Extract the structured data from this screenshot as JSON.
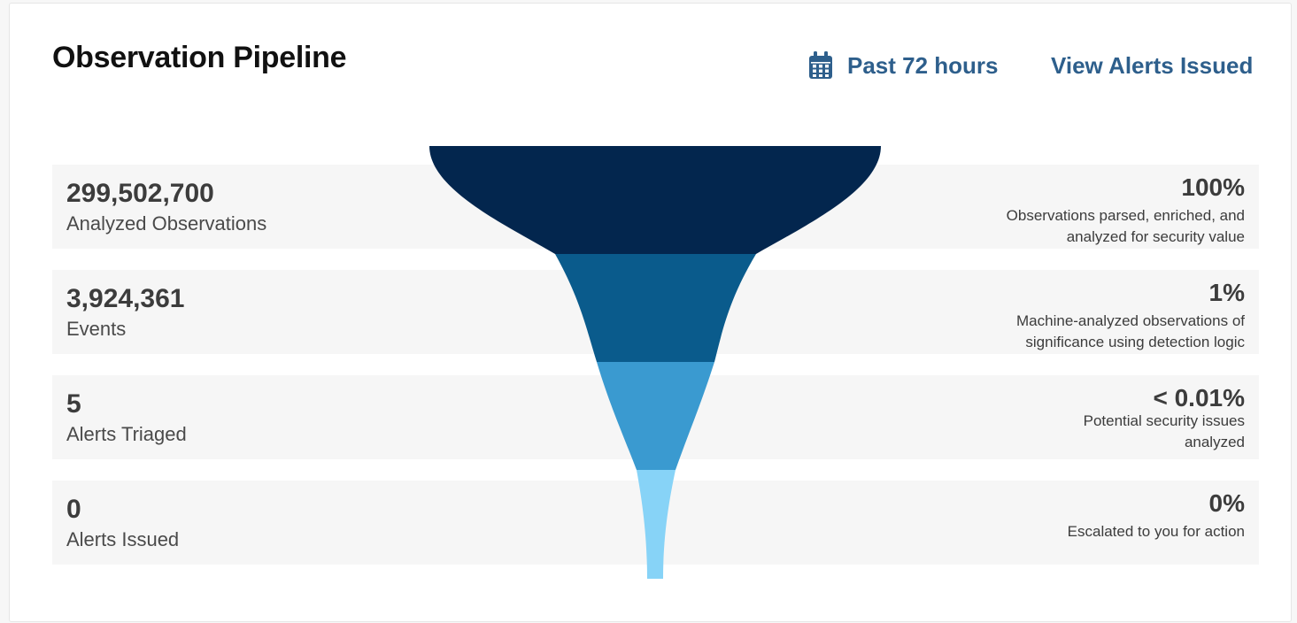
{
  "header": {
    "title": "Observation Pipeline",
    "time_range_label": "Past 72 hours",
    "time_range_icon": "calendar-icon",
    "view_alerts_label": "View Alerts Issued"
  },
  "colors": {
    "link": "#2e5f8c",
    "stage_1": "#03264e",
    "stage_2": "#0a5b8c",
    "stage_3": "#3a9ad0",
    "stage_4": "#87d3f7"
  },
  "stages": [
    {
      "count": "299,502,700",
      "label": "Analyzed Observations",
      "percent": "100%",
      "description": "Observations parsed, enriched, and analyzed for security value"
    },
    {
      "count": "3,924,361",
      "label": "Events",
      "percent": "1%",
      "description": "Machine-analyzed observations of significance using detection logic"
    },
    {
      "count": "5",
      "label": "Alerts Triaged",
      "percent": "< 0.01%",
      "description": "Potential security issues analyzed"
    },
    {
      "count": "0",
      "label": "Alerts Issued",
      "percent": "0%",
      "description": "Escalated to you for action"
    }
  ]
}
